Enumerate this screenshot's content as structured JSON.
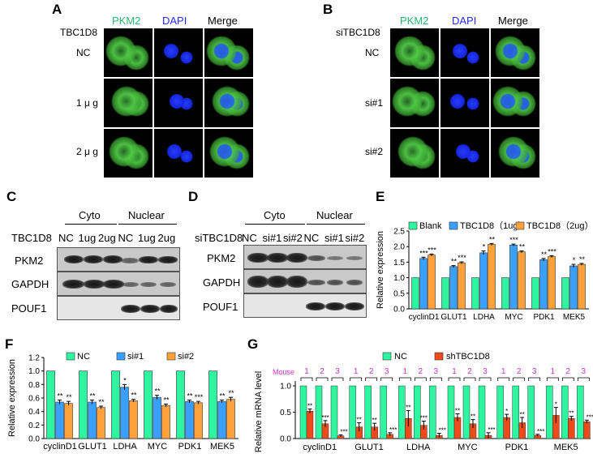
{
  "panelA": {
    "letter": "A",
    "headers": [
      "PKM2",
      "DAPI",
      "Merge"
    ],
    "row_title": "TBC1D8",
    "rows": [
      "NC",
      "1 μ g",
      "2 μ g"
    ]
  },
  "panelB": {
    "letter": "B",
    "headers": [
      "PKM2",
      "DAPI",
      "Merge"
    ],
    "row_title": "siTBC1D8",
    "rows": [
      "NC",
      "si#1",
      "si#2"
    ]
  },
  "panelC": {
    "letter": "C",
    "groups": [
      "Cyto",
      "Nuclear"
    ],
    "row_title": "TBC1D8",
    "lanes": [
      "NC",
      "1ug",
      "2ug",
      "NC",
      "1ug",
      "2ug"
    ],
    "blots": [
      "PKM2",
      "GAPDH",
      "POUF1"
    ]
  },
  "panelD": {
    "letter": "D",
    "groups": [
      "Cyto",
      "Nuclear"
    ],
    "row_title": "siTBC1D8",
    "lanes": [
      "NC",
      "si#1",
      "si#2",
      "NC",
      "si#1",
      "si#2"
    ],
    "blots": [
      "PKM2",
      "GAPDH",
      "POUF1"
    ]
  },
  "colors": {
    "green_label": "#2bb673",
    "blue_label": "#2a2aff",
    "blank": "#2ef5a0",
    "tbc_1ug": "#3aa0ff",
    "tbc_2ug": "#ffa13a",
    "si1": "#3aa0ff",
    "si2": "#ffa13a",
    "shRNA": "#ee4a1a",
    "mouse": "#cc33cc"
  },
  "chart_data": [
    {
      "panel": "E",
      "type": "bar",
      "categories": [
        "cyclinD1",
        "GLUT1",
        "LDHA",
        "MYC",
        "PDK1",
        "MEK5"
      ],
      "series": [
        {
          "name": "Blank",
          "values": [
            1.0,
            1.0,
            1.0,
            1.0,
            1.0,
            1.0
          ],
          "err": [
            0,
            0,
            0,
            0,
            0,
            0
          ],
          "sig": [
            "",
            "",
            "",
            "",
            "",
            ""
          ]
        },
        {
          "name": "TBC1D8（1ug）",
          "values": [
            1.62,
            1.36,
            1.8,
            2.05,
            1.58,
            1.38
          ],
          "err": [
            0.04,
            0.03,
            0.06,
            0.03,
            0.04,
            0.05
          ],
          "sig": [
            "***",
            "**",
            "*",
            "***",
            "**",
            "*"
          ]
        },
        {
          "name": "TBC1D8（2ug）",
          "values": [
            1.73,
            1.48,
            2.07,
            1.83,
            1.68,
            1.43
          ],
          "err": [
            0.03,
            0.03,
            0.03,
            0.03,
            0.03,
            0.03
          ],
          "sig": [
            "***",
            "***",
            "**",
            "**",
            "***",
            "**"
          ]
        }
      ],
      "ylabel": "Relative expression",
      "ylim": [
        0,
        2.5
      ],
      "yticks": [
        "0.0",
        "0.5",
        "1.0",
        "1.5",
        "2.0",
        "2.5"
      ],
      "yticks_num": [
        0,
        0.5,
        1,
        1.5,
        2,
        2.5
      ],
      "legend": "top"
    },
    {
      "panel": "F",
      "type": "bar",
      "categories": [
        "cyclinD1",
        "GLUT1",
        "LDHA",
        "MYC",
        "PDK1",
        "MEK5"
      ],
      "series": [
        {
          "name": "NC",
          "values": [
            1.0,
            1.0,
            1.0,
            1.0,
            1.0,
            1.0
          ],
          "err": [
            0,
            0,
            0,
            0,
            0,
            0
          ],
          "sig": [
            "",
            "",
            "",
            "",
            "",
            ""
          ]
        },
        {
          "name": "si#1",
          "values": [
            0.54,
            0.54,
            0.76,
            0.61,
            0.55,
            0.55
          ],
          "err": [
            0.03,
            0.03,
            0.04,
            0.03,
            0.02,
            0.02
          ],
          "sig": [
            "**",
            "**",
            "*",
            "**",
            "**",
            "**"
          ]
        },
        {
          "name": "si#2",
          "values": [
            0.52,
            0.46,
            0.56,
            0.49,
            0.53,
            0.58
          ],
          "err": [
            0.03,
            0.02,
            0.02,
            0.02,
            0.02,
            0.03
          ],
          "sig": [
            "**",
            "**",
            "**",
            "**",
            "***",
            "**"
          ]
        }
      ],
      "ylabel": "Relative expression",
      "ylim": [
        0,
        1.2
      ],
      "yticks": [
        "0.0",
        "0.2",
        "0.4",
        "0.6",
        "0.8",
        "1.0",
        "1.2"
      ],
      "yticks_num": [
        0,
        0.2,
        0.4,
        0.6,
        0.8,
        1.0,
        1.2
      ],
      "legend": "top"
    },
    {
      "panel": "G",
      "type": "bar",
      "categories": [
        "cyclinD1",
        "GLUT1",
        "LDHA",
        "MYC",
        "PDK1",
        "MEK5"
      ],
      "mouse_label": "Mouse",
      "mouse_ids": [
        "1",
        "2",
        "3"
      ],
      "series": [
        {
          "name": "NC",
          "values": [
            [
              1,
              1,
              1
            ],
            [
              1,
              1,
              1
            ],
            [
              1,
              1,
              1
            ],
            [
              1,
              1,
              1
            ],
            [
              1,
              1,
              1
            ],
            [
              1,
              1,
              1
            ]
          ]
        },
        {
          "name": "shTBC1D8",
          "values": [
            [
              0.52,
              0.28,
              0.05
            ],
            [
              0.22,
              0.22,
              0.08
            ],
            [
              0.38,
              0.25,
              0.06
            ],
            [
              0.4,
              0.28,
              0.06
            ],
            [
              0.4,
              0.3,
              0.06
            ],
            [
              0.44,
              0.38,
              0.32
            ]
          ],
          "err": [
            [
              0.04,
              0.06,
              0.02
            ],
            [
              0.08,
              0.07,
              0.03
            ],
            [
              0.15,
              0.08,
              0.04
            ],
            [
              0.07,
              0.08,
              0.05
            ],
            [
              0.06,
              0.1,
              0.02
            ],
            [
              0.15,
              0.04,
              0.03
            ]
          ],
          "sig": [
            [
              "**",
              "***",
              "***"
            ],
            [
              "**",
              "**",
              "***"
            ],
            [
              "**",
              "***",
              "***"
            ],
            [
              "**",
              "**",
              "***"
            ],
            [
              "*",
              "**",
              "***"
            ],
            [
              "*",
              "**",
              "***"
            ]
          ]
        }
      ],
      "ylabel": "Relative mRNA level",
      "ylim": [
        0,
        1.0
      ],
      "yticks": [
        "0.0",
        "0.5",
        "1.0"
      ],
      "yticks_num": [
        0,
        0.5,
        1.0
      ],
      "legend": "top"
    }
  ]
}
